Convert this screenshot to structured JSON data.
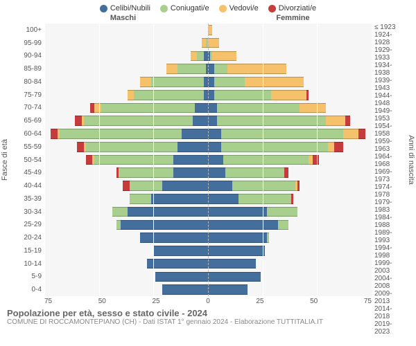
{
  "legend": [
    {
      "label": "Celibi/Nubili",
      "color": "#446e9b"
    },
    {
      "label": "Coniugati/e",
      "color": "#a8cf8e"
    },
    {
      "label": "Vedovi/e",
      "color": "#f5c26b"
    },
    {
      "label": "Divorziati/e",
      "color": "#c63c3c"
    }
  ],
  "headers": {
    "male": "Maschi",
    "female": "Femmine"
  },
  "axis": {
    "y_left_title": "Fasce di età",
    "y_right_title": "Anni di nascita",
    "x_max": 75,
    "x_ticks": [
      "75",
      "50",
      "25",
      "0",
      "25",
      "50",
      "75"
    ]
  },
  "footer": {
    "title": "Popolazione per età, sesso e stato civile - 2024",
    "subtitle": "COMUNE DI ROCCAMONTEPIANO (CH) - Dati ISTAT 1° gennaio 2024 - Elaborazione TUTTITALIA.IT"
  },
  "colors": {
    "celibi": "#446e9b",
    "coniugati": "#a8cf8e",
    "vedovi": "#f5c26b",
    "divorziati": "#c63c3c",
    "plot_bg": "#f6f6f6",
    "grid": "#ffffff"
  },
  "rows": [
    {
      "age": "100+",
      "birth": "≤ 1923",
      "m": {
        "c": 0,
        "co": 0,
        "v": 0,
        "d": 0
      },
      "f": {
        "c": 0,
        "co": 0,
        "v": 2,
        "d": 0
      }
    },
    {
      "age": "95-99",
      "birth": "1924-1928",
      "m": {
        "c": 0,
        "co": 1,
        "v": 2,
        "d": 0
      },
      "f": {
        "c": 0,
        "co": 0,
        "v": 5,
        "d": 0
      }
    },
    {
      "age": "90-94",
      "birth": "1929-1933",
      "m": {
        "c": 2,
        "co": 3,
        "v": 3,
        "d": 0
      },
      "f": {
        "c": 1,
        "co": 1,
        "v": 11,
        "d": 0
      }
    },
    {
      "age": "85-89",
      "birth": "1934-1938",
      "m": {
        "c": 1,
        "co": 13,
        "v": 5,
        "d": 0
      },
      "f": {
        "c": 3,
        "co": 6,
        "v": 27,
        "d": 0
      }
    },
    {
      "age": "80-84",
      "birth": "1939-1943",
      "m": {
        "c": 2,
        "co": 24,
        "v": 5,
        "d": 0
      },
      "f": {
        "c": 3,
        "co": 14,
        "v": 27,
        "d": 0
      }
    },
    {
      "age": "75-79",
      "birth": "1944-1948",
      "m": {
        "c": 2,
        "co": 32,
        "v": 3,
        "d": 0
      },
      "f": {
        "c": 3,
        "co": 26,
        "v": 16,
        "d": 1
      }
    },
    {
      "age": "70-74",
      "birth": "1949-1953",
      "m": {
        "c": 6,
        "co": 43,
        "v": 3,
        "d": 2
      },
      "f": {
        "c": 4,
        "co": 38,
        "v": 12,
        "d": 0
      }
    },
    {
      "age": "65-69",
      "birth": "1954-1958",
      "m": {
        "c": 7,
        "co": 50,
        "v": 1,
        "d": 3
      },
      "f": {
        "c": 4,
        "co": 50,
        "v": 9,
        "d": 2
      }
    },
    {
      "age": "60-64",
      "birth": "1959-1963",
      "m": {
        "c": 12,
        "co": 56,
        "v": 1,
        "d": 3
      },
      "f": {
        "c": 6,
        "co": 56,
        "v": 7,
        "d": 3
      }
    },
    {
      "age": "55-59",
      "birth": "1964-1968",
      "m": {
        "c": 14,
        "co": 42,
        "v": 1,
        "d": 3
      },
      "f": {
        "c": 6,
        "co": 49,
        "v": 3,
        "d": 4
      }
    },
    {
      "age": "50-54",
      "birth": "1969-1973",
      "m": {
        "c": 16,
        "co": 36,
        "v": 1,
        "d": 3
      },
      "f": {
        "c": 7,
        "co": 39,
        "v": 2,
        "d": 3
      }
    },
    {
      "age": "45-49",
      "birth": "1974-1978",
      "m": {
        "c": 16,
        "co": 25,
        "v": 0,
        "d": 1
      },
      "f": {
        "c": 8,
        "co": 27,
        "v": 0,
        "d": 2
      }
    },
    {
      "age": "40-44",
      "birth": "1979-1983",
      "m": {
        "c": 21,
        "co": 15,
        "v": 0,
        "d": 3
      },
      "f": {
        "c": 11,
        "co": 29,
        "v": 1,
        "d": 1
      }
    },
    {
      "age": "35-39",
      "birth": "1984-1988",
      "m": {
        "c": 26,
        "co": 10,
        "v": 0,
        "d": 0
      },
      "f": {
        "c": 14,
        "co": 24,
        "v": 0,
        "d": 1
      }
    },
    {
      "age": "30-34",
      "birth": "1989-1993",
      "m": {
        "c": 37,
        "co": 7,
        "v": 0,
        "d": 0
      },
      "f": {
        "c": 27,
        "co": 14,
        "v": 0,
        "d": 0
      }
    },
    {
      "age": "25-29",
      "birth": "1994-1998",
      "m": {
        "c": 40,
        "co": 2,
        "v": 0,
        "d": 0
      },
      "f": {
        "c": 32,
        "co": 5,
        "v": 0,
        "d": 0
      }
    },
    {
      "age": "20-24",
      "birth": "1999-2003",
      "m": {
        "c": 31,
        "co": 0,
        "v": 0,
        "d": 0
      },
      "f": {
        "c": 27,
        "co": 1,
        "v": 0,
        "d": 0
      }
    },
    {
      "age": "15-19",
      "birth": "2004-2008",
      "m": {
        "c": 25,
        "co": 0,
        "v": 0,
        "d": 0
      },
      "f": {
        "c": 26,
        "co": 0,
        "v": 0,
        "d": 0
      }
    },
    {
      "age": "10-14",
      "birth": "2009-2013",
      "m": {
        "c": 28,
        "co": 0,
        "v": 0,
        "d": 0
      },
      "f": {
        "c": 22,
        "co": 0,
        "v": 0,
        "d": 0
      }
    },
    {
      "age": "5-9",
      "birth": "2014-2018",
      "m": {
        "c": 24,
        "co": 0,
        "v": 0,
        "d": 0
      },
      "f": {
        "c": 24,
        "co": 0,
        "v": 0,
        "d": 0
      }
    },
    {
      "age": "0-4",
      "birth": "2019-2023",
      "m": {
        "c": 21,
        "co": 0,
        "v": 0,
        "d": 0
      },
      "f": {
        "c": 18,
        "co": 0,
        "v": 0,
        "d": 0
      }
    }
  ]
}
